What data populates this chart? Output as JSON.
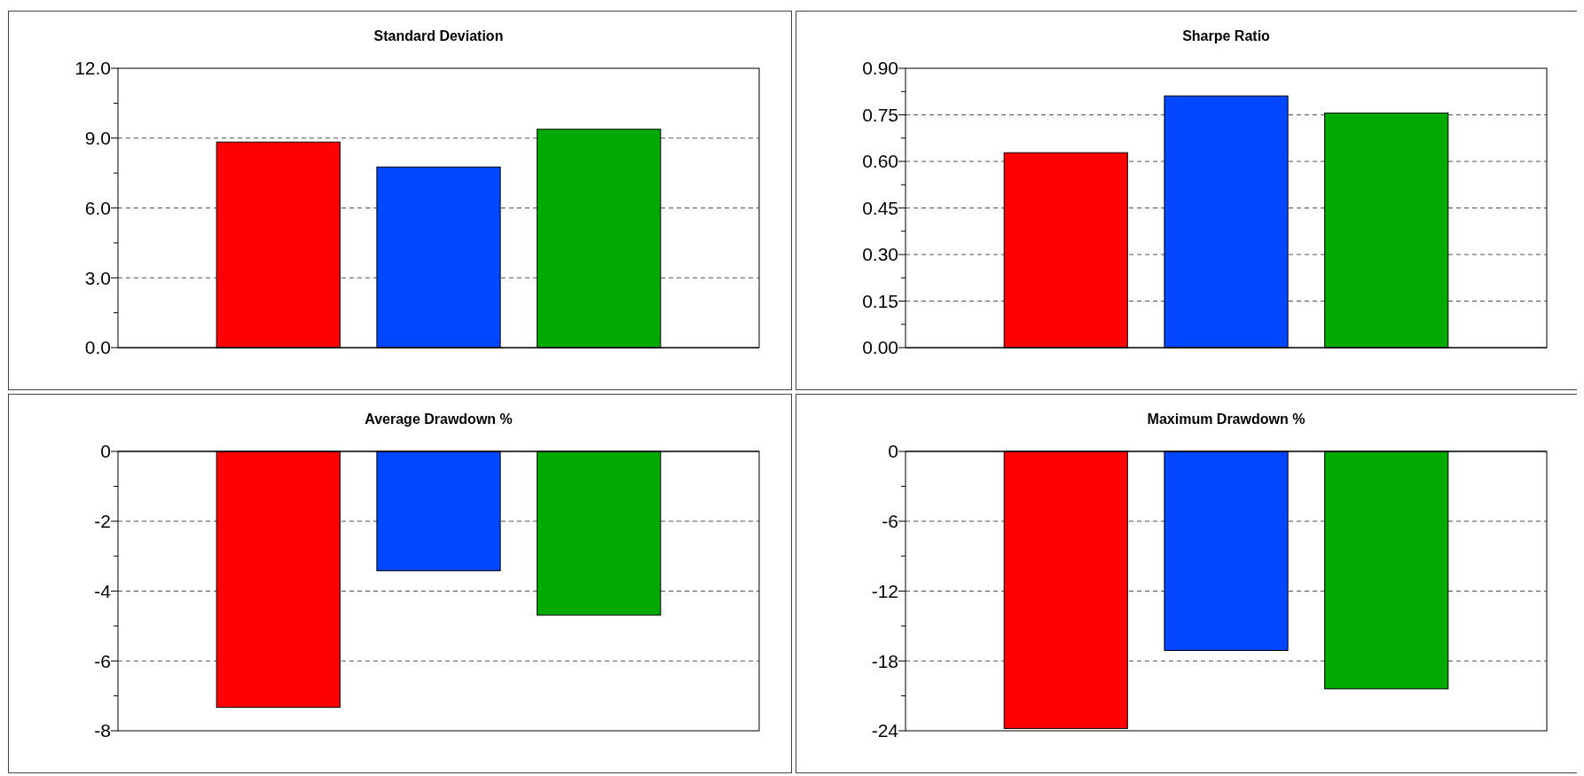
{
  "chart_data": [
    {
      "type": "bar",
      "title": "Standard Deviation",
      "categories": [
        null,
        null,
        null
      ],
      "values": [
        8.83,
        7.76,
        9.38
      ],
      "colors": [
        "#ff0000",
        "#0047ff",
        "#00aa00"
      ],
      "ylim": [
        0,
        12
      ],
      "yticks": [
        {
          "value": 0,
          "label": "0.0"
        },
        {
          "value": 1.5,
          "label": null
        },
        {
          "value": 3,
          "label": "3.0"
        },
        {
          "value": 4.5,
          "label": null
        },
        {
          "value": 6,
          "label": "6.0"
        },
        {
          "value": 7.5,
          "label": null
        },
        {
          "value": 9,
          "label": "9.0"
        },
        {
          "value": 10.5,
          "label": null
        },
        {
          "value": 12,
          "label": "12.0"
        }
      ],
      "grid": "y"
    },
    {
      "type": "bar",
      "title": "Sharpe Ratio",
      "categories": [
        null,
        null,
        null
      ],
      "values": [
        0.628,
        0.811,
        0.756
      ],
      "colors": [
        "#ff0000",
        "#0047ff",
        "#00aa00"
      ],
      "ylim": [
        0,
        0.9
      ],
      "yticks": [
        {
          "value": 0,
          "label": "0.00"
        },
        {
          "value": 0.075,
          "label": null
        },
        {
          "value": 0.15,
          "label": "0.15"
        },
        {
          "value": 0.225,
          "label": null
        },
        {
          "value": 0.3,
          "label": "0.30"
        },
        {
          "value": 0.375,
          "label": null
        },
        {
          "value": 0.45,
          "label": "0.45"
        },
        {
          "value": 0.525,
          "label": null
        },
        {
          "value": 0.6,
          "label": "0.60"
        },
        {
          "value": 0.675,
          "label": null
        },
        {
          "value": 0.75,
          "label": "0.75"
        },
        {
          "value": 0.825,
          "label": null
        },
        {
          "value": 0.9,
          "label": "0.90"
        }
      ],
      "grid": "y"
    },
    {
      "type": "bar",
      "title": "Average Drawdown %",
      "categories": [
        null,
        null,
        null
      ],
      "values": [
        -7.33,
        -3.42,
        -4.69
      ],
      "colors": [
        "#ff0000",
        "#0047ff",
        "#00aa00"
      ],
      "ylim": [
        -8,
        0
      ],
      "yticks": [
        -8,
        {
          "value": -7,
          "label": null
        },
        -6,
        {
          "value": -5,
          "label": null
        },
        -4,
        {
          "value": -3,
          "label": null
        },
        -2,
        {
          "value": -1,
          "label": null
        },
        0
      ],
      "grid": "y"
    },
    {
      "type": "bar",
      "title": "Maximum Drawdown %",
      "categories": [
        null,
        null,
        null
      ],
      "values": [
        -23.8,
        -17.1,
        -20.4
      ],
      "colors": [
        "#ff0000",
        "#0047ff",
        "#00aa00"
      ],
      "ylim": [
        -24,
        0
      ],
      "yticks": [
        -24,
        {
          "value": -21,
          "label": null
        },
        -18,
        {
          "value": -15,
          "label": null
        },
        -12,
        {
          "value": -9,
          "label": null
        },
        -6,
        {
          "value": -3,
          "label": null
        },
        0
      ],
      "grid": "y"
    }
  ]
}
